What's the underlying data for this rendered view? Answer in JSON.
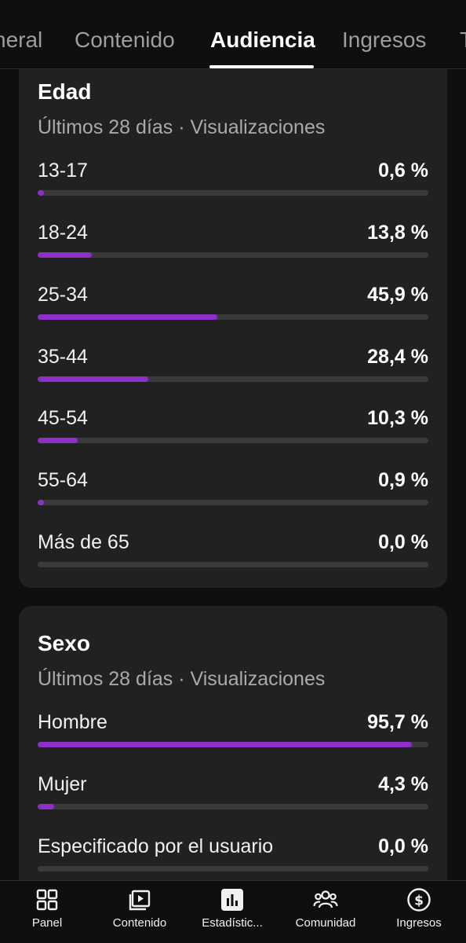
{
  "tabs": [
    {
      "label": "General",
      "visible_text": "neral",
      "active": false
    },
    {
      "label": "Contenido",
      "active": false
    },
    {
      "label": "Audiencia",
      "active": true
    },
    {
      "label": "Ingresos",
      "active": false
    },
    {
      "label": "T",
      "active": false
    }
  ],
  "age_card": {
    "title": "Edad",
    "subtitle": "Últimos 28 días · Visualizaciones",
    "rows": [
      {
        "label": "13-17",
        "value": "0,6 %",
        "percent": 0.6
      },
      {
        "label": "18-24",
        "value": "13,8 %",
        "percent": 13.8
      },
      {
        "label": "25-34",
        "value": "45,9 %",
        "percent": 45.9
      },
      {
        "label": "35-44",
        "value": "28,4 %",
        "percent": 28.4
      },
      {
        "label": "45-54",
        "value": "10,3 %",
        "percent": 10.3
      },
      {
        "label": "55-64",
        "value": "0,9 %",
        "percent": 0.9
      },
      {
        "label": "Más de 65",
        "value": "0,0 %",
        "percent": 0.0
      }
    ]
  },
  "sex_card": {
    "title": "Sexo",
    "subtitle": "Últimos 28 días · Visualizaciones",
    "rows": [
      {
        "label": "Hombre",
        "value": "95,7 %",
        "percent": 95.7
      },
      {
        "label": "Mujer",
        "value": "4,3 %",
        "percent": 4.3
      },
      {
        "label": "Especificado por el usuario",
        "value": "0,0 %",
        "percent": 0.0
      }
    ]
  },
  "bottom_nav": [
    {
      "label": "Panel",
      "icon": "dashboard-icon"
    },
    {
      "label": "Contenido",
      "icon": "content-icon"
    },
    {
      "label": "Estadístic...",
      "icon": "analytics-icon",
      "active": true
    },
    {
      "label": "Comunidad",
      "icon": "community-icon"
    },
    {
      "label": "Ingresos",
      "icon": "earn-icon"
    }
  ],
  "colors": {
    "bar_fill": "#8e2fc7",
    "bar_track": "#3a3a3a",
    "card_bg": "#212121",
    "page_bg": "#0f0f0f"
  }
}
